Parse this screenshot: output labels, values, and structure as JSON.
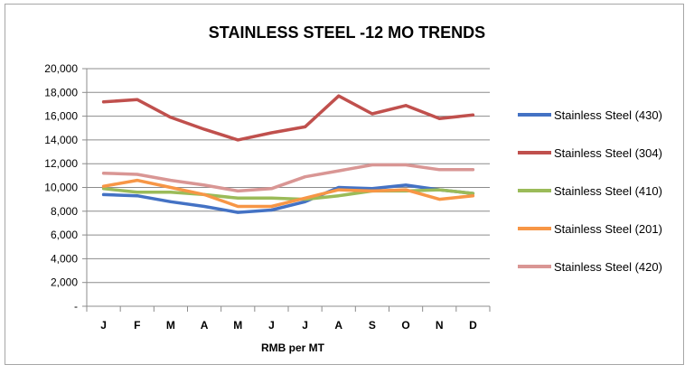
{
  "chart_data": {
    "type": "line",
    "title": "STAINLESS STEEL -12 MO TRENDS",
    "xlabel": "RMB per MT",
    "ylabel": "",
    "categories": [
      "J",
      "F",
      "M",
      "A",
      "M",
      "J",
      "J",
      "A",
      "S",
      "O",
      "N",
      "D"
    ],
    "ylim": [
      0,
      20000
    ],
    "yticks": [
      {
        "value": 0,
        "label": "-"
      },
      {
        "value": 2000,
        "label": "2,000"
      },
      {
        "value": 4000,
        "label": "4,000"
      },
      {
        "value": 6000,
        "label": "6,000"
      },
      {
        "value": 8000,
        "label": "8,000"
      },
      {
        "value": 10000,
        "label": "10,000"
      },
      {
        "value": 12000,
        "label": "12,000"
      },
      {
        "value": 14000,
        "label": "14,000"
      },
      {
        "value": 16000,
        "label": "16,000"
      },
      {
        "value": 18000,
        "label": "18,000"
      },
      {
        "value": 20000,
        "label": "20,000"
      }
    ],
    "grid": "horizontal",
    "legend_position": "right",
    "series": [
      {
        "name": "Stainless Steel (430)",
        "color": "#4472c4",
        "values": [
          9400,
          9300,
          8800,
          8400,
          7900,
          8100,
          8800,
          10000,
          9900,
          10200,
          9800,
          9500
        ]
      },
      {
        "name": "Stainless Steel (304)",
        "color": "#c0504d",
        "values": [
          17200,
          17400,
          15900,
          14900,
          14000,
          14600,
          15100,
          17700,
          16200,
          16900,
          15800,
          16100
        ]
      },
      {
        "name": "Stainless Steel (410)",
        "color": "#9bbb59",
        "values": [
          9900,
          9600,
          9600,
          9400,
          9100,
          9100,
          9000,
          9300,
          9700,
          9700,
          9800,
          9500
        ]
      },
      {
        "name": "Stainless Steel (201)",
        "color": "#f79646",
        "values": [
          10100,
          10600,
          10000,
          9400,
          8400,
          8400,
          9100,
          9800,
          9700,
          9800,
          9000,
          9300
        ]
      },
      {
        "name": "Stainless Steel (420)",
        "color": "#d99694",
        "values": [
          11200,
          11100,
          10600,
          10200,
          9700,
          9900,
          10900,
          11400,
          11900,
          11900,
          11500,
          11500
        ]
      }
    ]
  }
}
